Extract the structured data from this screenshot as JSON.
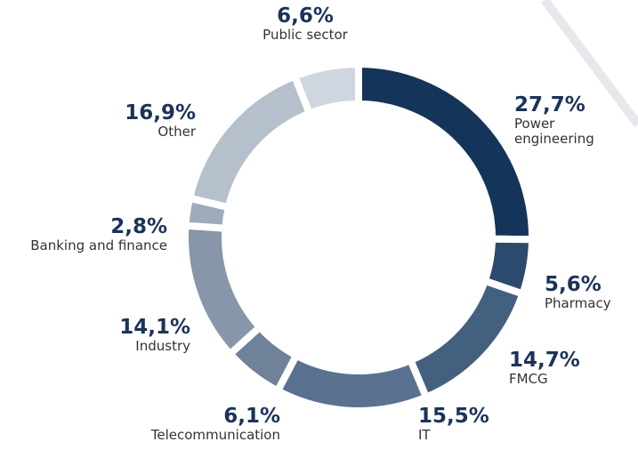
{
  "chart_data": {
    "type": "donut",
    "categories": [
      "Power engineering",
      "Pharmacy",
      "FMCG",
      "IT",
      "Telecommunication",
      "Industry",
      "Banking and finance",
      "Other",
      "Public sector"
    ],
    "values": [
      27.7,
      5.6,
      14.7,
      15.5,
      6.1,
      14.1,
      2.8,
      16.9,
      6.6
    ],
    "value_labels": [
      "27,7%",
      "5,6%",
      "14,7%",
      "15,5%",
      "6,1%",
      "14,1%",
      "2,8%",
      "16,9%",
      "6,6%"
    ],
    "colors": [
      "#15345a",
      "#2c4a6e",
      "#43607f",
      "#5a7290",
      "#6f8299",
      "#8796a9",
      "#9eabbb",
      "#b5c0cc",
      "#d0d6df"
    ]
  }
}
